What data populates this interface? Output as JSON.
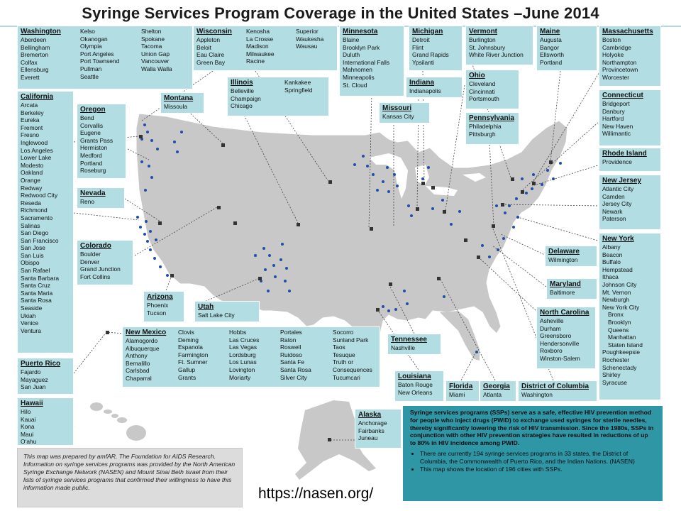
{
  "title": "Syringe Services Program Coverage in the United States –June 2014",
  "url": "https://nasen.org/",
  "colors": {
    "box": "#b2dde2",
    "land": "#c7c7c7",
    "city_dot": "#1f4fa6",
    "city_square": "#333333",
    "note_box": "#2f96a6",
    "credit_box": "#dcdcdc"
  },
  "states": {
    "washington": {
      "name": "Washington",
      "col1": [
        "Aberdeen",
        "Bellingham",
        "Bremerton",
        "Colfax",
        "Ellensburg",
        "Everett"
      ],
      "col2": [
        "Kelso",
        "Okanogan",
        "Olympia",
        "Port Angeles",
        "Port Townsend",
        "Pullman",
        "Seattle"
      ],
      "col3": [
        "Shelton",
        "Spokane",
        "Tacoma",
        "Union Gap",
        "Vancouver",
        "Walla Walla"
      ]
    },
    "wisconsin": {
      "name": "Wisconsin",
      "col1": [
        "Appleton",
        "Beloit",
        "Eau Claire",
        "Green Bay"
      ],
      "col2": [
        "Kenosha",
        "La Crosse",
        "Madison",
        "Milwaukee",
        "Racine"
      ],
      "col3": [
        "Superior",
        "Waukesha",
        "Wausau"
      ]
    },
    "minnesota": {
      "name": "Minnesota",
      "cities": [
        "Blaine",
        "Brooklyn Park",
        "Duluth",
        "International Falls",
        "Mahnomen",
        "Minneapolis",
        "St. Cloud"
      ]
    },
    "michigan": {
      "name": "Michigan",
      "cities": [
        "Detroit",
        "Flint",
        "Grand Rapids",
        "Ypsilanti"
      ]
    },
    "vermont": {
      "name": "Vermont",
      "cities": [
        "Burlington",
        "St. Johnsbury",
        "White River Junction"
      ]
    },
    "maine": {
      "name": "Maine",
      "cities": [
        "Augusta",
        "Bangor",
        "Ellsworth",
        "Portland"
      ]
    },
    "massachusetts": {
      "name": "Massachusetts",
      "cities": [
        "Boston",
        "Cambridge",
        "Holyoke",
        "Northampton",
        "Provincetown",
        "Worcester"
      ]
    },
    "california": {
      "name": "California",
      "cities": [
        "Arcata",
        "Berkeley",
        "Eureka",
        "Fremont",
        "Fresno",
        "Inglewood",
        "Los Angeles",
        "Lower Lake",
        "Modesto",
        "Oakland",
        "Orange",
        "Redway",
        "Redwood City",
        "Reseda",
        "Richmond",
        "Sacramento",
        "Salinas",
        "San Diego",
        "San Francisco",
        "San Jose",
        "San Luis",
        "Obispo",
        "San Rafael",
        "Santa Barbara",
        "Santa Cruz",
        "Santa Maria",
        "Santa Rosa",
        "Seaside",
        "Ukiah",
        "Venice",
        "Ventura"
      ]
    },
    "oregon": {
      "name": "Oregon",
      "cities": [
        "Bend",
        "Corvallis",
        "Eugene",
        "Grants Pass",
        "Hermiston",
        "Medford",
        "Portland",
        "Roseburg"
      ]
    },
    "montana": {
      "name": "Montana",
      "cities": [
        "Missoula"
      ]
    },
    "illinois": {
      "name": "Illinois",
      "col1": [
        "Belleville",
        "Champaign",
        "Chicago"
      ],
      "col2": [
        "Kankakee",
        "Springfield"
      ],
      "col2_title": "Kankakee"
    },
    "indiana": {
      "name": "Indiana",
      "cities": [
        "Indianapolis"
      ]
    },
    "ohio": {
      "name": "Ohio",
      "cities": [
        "Cleveland",
        "Cincinnati",
        "Portsmouth"
      ]
    },
    "missouri": {
      "name": "Missouri",
      "cities": [
        "Kansas City"
      ]
    },
    "pennsylvania": {
      "name": "Pennsylvania",
      "cities": [
        "Philadelphia",
        "Pittsburgh"
      ]
    },
    "connecticut": {
      "name": "Connecticut",
      "cities": [
        "Bridgeport",
        "Danbury",
        "Hartford",
        "New Haven",
        "Willimantic"
      ]
    },
    "rhode_island": {
      "name": "Rhode Island",
      "cities": [
        "Providence"
      ]
    },
    "new_jersey": {
      "name": "New Jersey",
      "cities": [
        "Atlantic City",
        "Camden",
        "Jersey City",
        "Newark",
        "Paterson"
      ]
    },
    "nevada": {
      "name": "Nevada",
      "cities": [
        "Reno"
      ]
    },
    "colorado": {
      "name": "Colorado",
      "cities": [
        "Boulder",
        "Denver",
        "Grand Junction",
        "Fort Collins"
      ]
    },
    "new_york": {
      "name": "New York",
      "cities": [
        "Albany",
        "Beacon",
        "Buffalo",
        "Hempstead",
        "Ithaca",
        "Johnson City",
        "Mt. Vernon",
        "Newburgh",
        "New York City"
      ],
      "subcities": [
        "Bronx",
        "Brooklyn",
        "Queens",
        "Manhattan",
        "Staten Island"
      ],
      "cities_after": [
        "Poughkeepsie",
        "Rochester",
        "Schenectady",
        "Shirley",
        "Syracuse"
      ]
    },
    "delaware": {
      "name": "Delaware",
      "cities": [
        "Wilmington"
      ]
    },
    "maryland": {
      "name": "Maryland",
      "cities": [
        "Baltimore"
      ]
    },
    "arizona": {
      "name": "Arizona",
      "cities": [
        "Phoenix",
        "Tucson"
      ]
    },
    "utah": {
      "name": "Utah",
      "cities": [
        "Salt Lake City"
      ]
    },
    "north_carolina": {
      "name": "North Carolina",
      "cities": [
        "Asheville",
        "Durham",
        "Greensboro",
        "Hendersonville",
        "Roxboro",
        "Winston-Salem"
      ]
    },
    "new_mexico": {
      "name": "New Mexico",
      "col1": [
        "Alamogordo",
        "Albuquerque",
        "Anthony",
        "Bernalillo",
        "Carlsbad",
        "Chaparral"
      ],
      "col2": [
        "Clovis",
        "Deming",
        "Espanola",
        "Farmington",
        "Ft. Sumner",
        "Gallup",
        "Grants"
      ],
      "col3": [
        "Hobbs",
        "Las Cruces",
        "Las Vegas",
        "Lordsburg",
        "Los Lunas",
        "Lovington",
        "Moriarty"
      ],
      "col4": [
        "Portales",
        "Raton",
        "Roswell",
        "Ruidoso",
        "Santa Fe",
        "Santa Rosa",
        "Silver City"
      ],
      "col5": [
        "Socorro",
        "Sunland Park",
        "Taos",
        "Tesuque",
        "Truth or",
        "Consequences",
        "Tucumcari"
      ]
    },
    "tennessee": {
      "name": "Tennessee",
      "cities": [
        "Nashville"
      ]
    },
    "louisiana": {
      "name": "Louisiana",
      "cities": [
        "Baton Rouge",
        "New Orleans"
      ]
    },
    "florida": {
      "name": "Florida",
      "cities": [
        "Miami"
      ]
    },
    "georgia": {
      "name": "Georgia",
      "cities": [
        "Atlanta"
      ]
    },
    "dc": {
      "name": "District of Columbia",
      "cities": [
        "Washington"
      ]
    },
    "puerto_rico": {
      "name": "Puerto Rico",
      "cities": [
        "Fajardo",
        "Mayaguez",
        "San Juan"
      ]
    },
    "hawaii": {
      "name": "Hawaii",
      "cities": [
        "Hilo",
        "Kauai",
        "Kona",
        "Maui",
        "Oʻahu"
      ]
    },
    "alaska": {
      "name": "Alaska",
      "cities": [
        "Anchorage",
        "Fairbanks",
        "Juneau"
      ]
    }
  },
  "credit_note": "This map was prepared by amfAR, The Foundation for AIDS Research. Information on syringe services programs was provided by the North American Syringe Exchange Network (NASEN) and Mount Sinai Beth Israel from their lists of syringe services programs that confirmed their willingness to have this information made public.",
  "info_note": {
    "lead": "Syringe services programs (SSPs) serve as a safe, effective HIV prevention method for people who inject drugs (PWID) to exchange used syringes for sterile needles, thereby significantly lowering the risk of HIV transmission. Since the 1980s, SSPs in conjunction with other HIV prevention strategies have resulted in reductions of up to 80% in HIV incidence among PWID.",
    "bullets": [
      "There are currently 194 syringe services programs in 33 states, the District of Columbia, the Commonwealth of Puerto Rico, and the Indian Nations. (NASEN)",
      "This map shows the location of 196 cities with SSPs."
    ]
  }
}
